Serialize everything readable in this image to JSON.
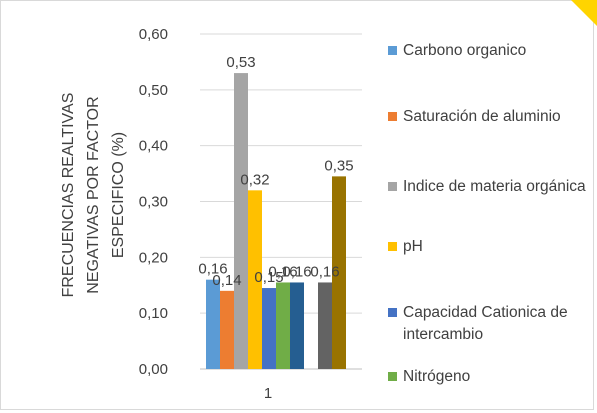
{
  "chart_data": {
    "type": "bar",
    "categories": [
      "1"
    ],
    "ylabel": "FRECUENCIAS REALTIVAS NEGATIVAS POR FACTOR ESPECIFICO  (%)",
    "ylim": [
      0,
      0.6
    ],
    "yticks": [
      "0,00",
      "0,10",
      "0,20",
      "0,30",
      "0,40",
      "0,50",
      "0,60"
    ],
    "grid": true,
    "legend_position": "right",
    "series": [
      {
        "name": "Carbono organico",
        "values": [
          0.16
        ],
        "label": "0,16",
        "color": "#5b9bd5"
      },
      {
        "name": "Saturación de aluminio",
        "values": [
          0.14
        ],
        "label": "0,14",
        "color": "#ed7d31"
      },
      {
        "name": "Indice de materia orgánica",
        "values": [
          0.53
        ],
        "label": "0,53",
        "color": "#a5a5a5"
      },
      {
        "name": "pH",
        "values": [
          0.32
        ],
        "label": "0,32",
        "color": "#ffc000"
      },
      {
        "name": "Capacidad Cationica de intercambio",
        "values": [
          0.145
        ],
        "label": "0,15",
        "color": "#4472c4"
      },
      {
        "name": "Nitrógeno",
        "values": [
          0.155
        ],
        "label": "0,16",
        "color": "#70ad47"
      },
      {
        "name": "",
        "values": [
          0.155
        ],
        "label": "0,16",
        "color": "#255e91"
      },
      {
        "name": "",
        "values": [
          0
        ],
        "label": "",
        "color": "#ffffff"
      },
      {
        "name": "",
        "values": [
          0.155
        ],
        "label": "0,16",
        "color": "#636363"
      },
      {
        "name": "",
        "values": [
          0.345
        ],
        "label": "0,35",
        "color": "#997300"
      }
    ]
  }
}
